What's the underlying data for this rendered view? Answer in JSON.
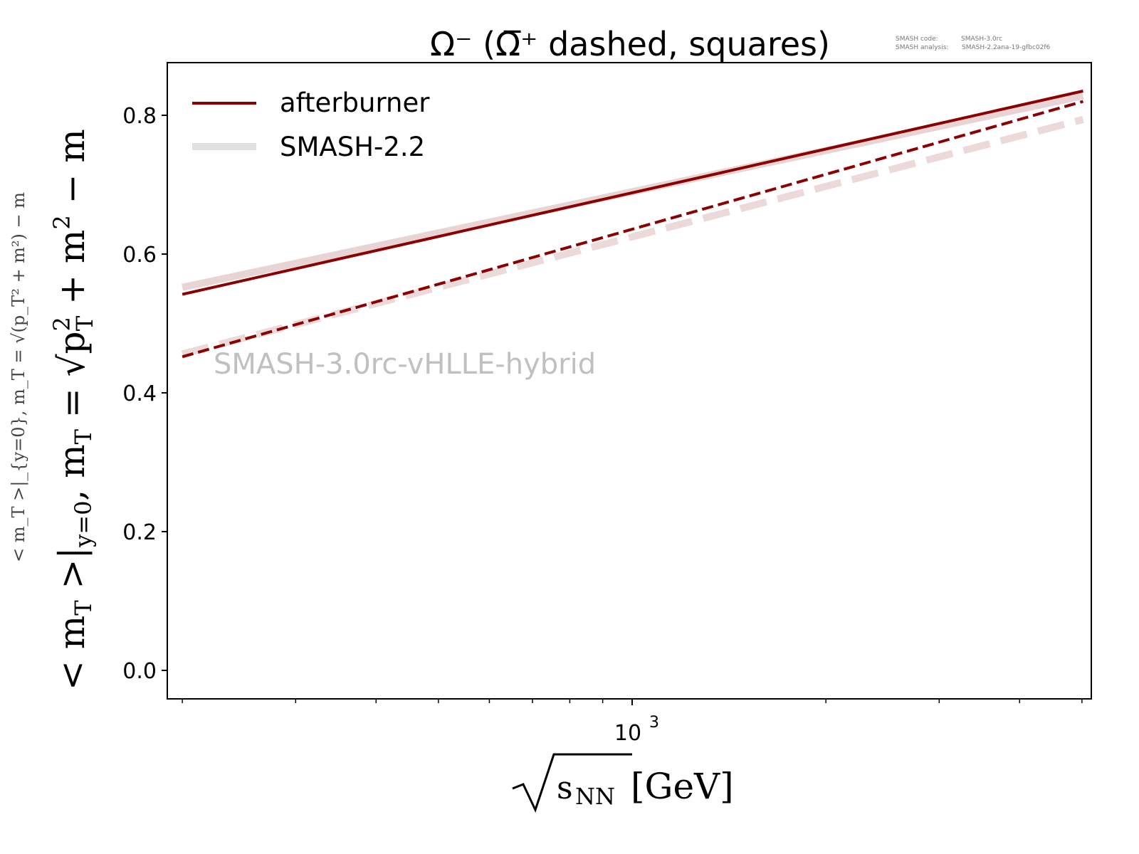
{
  "chart_data": {
    "type": "line",
    "title": "Ω⁻ (Ω̅⁺ dashed, squares)",
    "xlabel": "√s_NN [GeV]",
    "xlabel_root": "s",
    "xlabel_sub": "NN",
    "xlabel_unit": "[GeV]",
    "ylabel": "< m_T >|_{y=0}, m_T = √(p_T² + m²) − m",
    "ylabel_parts": {
      "a": "< m",
      "a_sub": "T",
      "b": " >|",
      "b_sub": "y=0",
      "c": ", m",
      "c_sub": "T",
      "d": " = √",
      "e": "p",
      "e_sup": "2",
      "e_sub": "T",
      "f": " + m",
      "f_sup": "2",
      "g": " − m"
    },
    "xscale": "log",
    "xlim": [
      185,
      5500
    ],
    "ylim": [
      -0.04,
      0.877
    ],
    "yticks": [
      0.0,
      0.2,
      0.4,
      0.6,
      0.8
    ],
    "ytick_labels": [
      "0.0",
      "0.2",
      "0.4",
      "0.6",
      "0.8"
    ],
    "xtick_major_label": "10",
    "xtick_major_exp": "3",
    "x_minor": [
      200,
      300,
      400,
      500,
      600,
      700,
      800,
      900,
      2000,
      3000,
      4000,
      5000
    ],
    "series": [
      {
        "name": "afterburner Ω⁻",
        "legend": "afterburner",
        "style": "solid",
        "color": "#8b0000",
        "x": [
          200,
          5020
        ],
        "y": [
          0.542,
          0.835
        ]
      },
      {
        "name": "SMASH-2.2 Ω⁻",
        "legend": "SMASH-2.2",
        "style": "solid",
        "color": "#e8d4d4",
        "x": [
          200,
          5020
        ],
        "y": [
          0.552,
          0.828
        ]
      },
      {
        "name": "afterburner Ω̅⁺",
        "style": "dashed",
        "color": "#8b0000",
        "x": [
          200,
          5020
        ],
        "y": [
          0.452,
          0.82
        ]
      },
      {
        "name": "SMASH-2.2 Ω̅⁺",
        "style": "dashed",
        "color": "#ecd9d9",
        "x": [
          200,
          5020
        ],
        "y": [
          0.456,
          0.794
        ]
      }
    ],
    "legend_placement": "top-left",
    "watermark": "SMASH-3.0rc-vHLLE-hybrid",
    "info": {
      "code_label": "SMASH code:",
      "code_value": "SMASH-3.0rc",
      "analysis_label": "SMASH analysis:",
      "analysis_value": "SMASH-2.2ana-19-gfbc02f6"
    }
  }
}
